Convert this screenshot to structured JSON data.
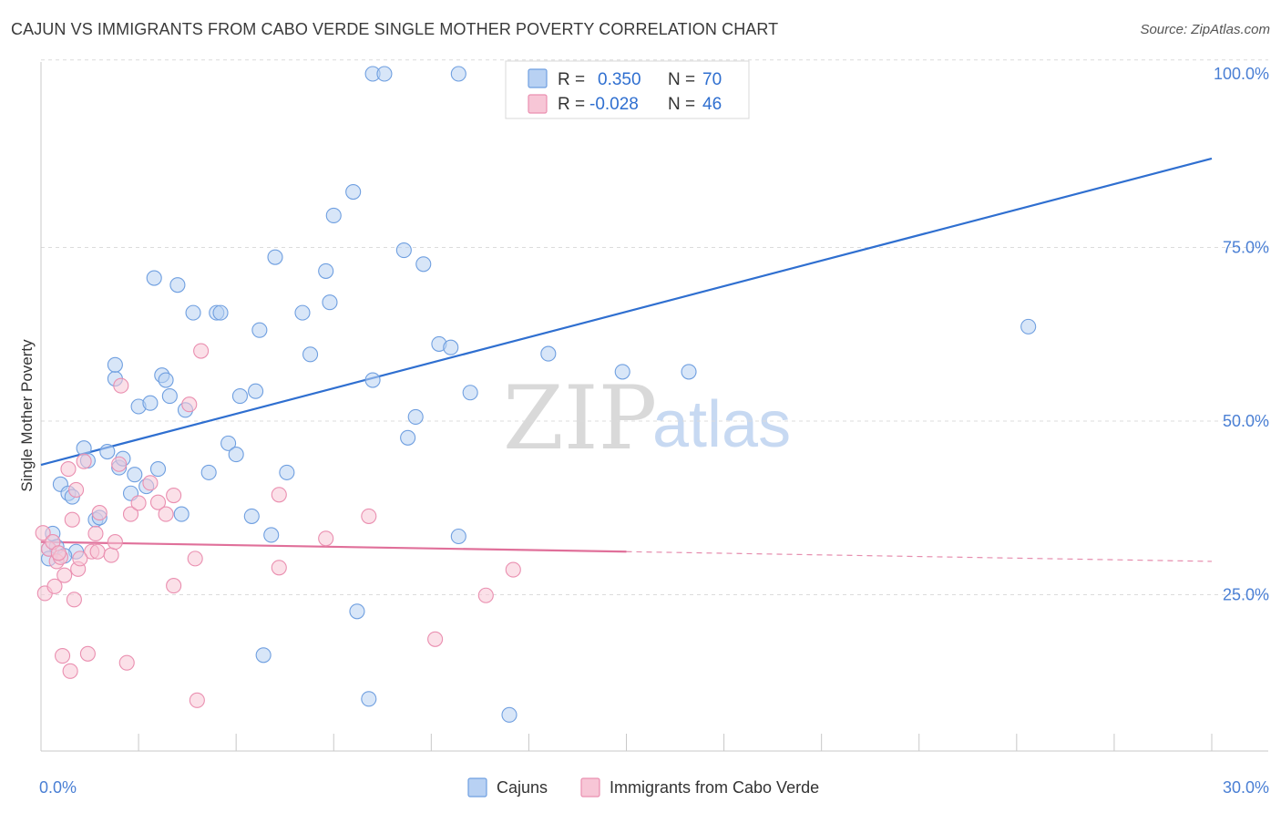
{
  "header": {
    "title": "CAJUN VS IMMIGRANTS FROM CABO VERDE SINGLE MOTHER POVERTY CORRELATION CHART",
    "source": "Source: ZipAtlas.com"
  },
  "watermark": {
    "zip": "ZIP",
    "atlas": "atlas"
  },
  "legend": {
    "r_label": "R =",
    "n_label": "N =",
    "rows": [
      {
        "r": "0.350",
        "n": "70",
        "fill": "#b8d1f3",
        "stroke": "#6f9fe0"
      },
      {
        "r": "-0.028",
        "n": "46",
        "fill": "#f7c6d6",
        "stroke": "#ea8fb0"
      }
    ]
  },
  "chart_data": {
    "type": "scatter",
    "title": "CAJUN VS IMMIGRANTS FROM CABO VERDE SINGLE MOTHER POVERTY CORRELATION CHART",
    "xlabel": "",
    "ylabel": "Single Mother Poverty",
    "xlim": [
      0,
      30
    ],
    "ylim": [
      0,
      105
    ],
    "x_tick_labels": [
      {
        "value": 0,
        "label": "0.0%"
      },
      {
        "value": 30,
        "label": "30.0%"
      }
    ],
    "y_tick_labels": [
      {
        "value": 25,
        "label": "25.0%"
      },
      {
        "value": 50,
        "label": "50.0%"
      },
      {
        "value": 75,
        "label": "75.0%"
      },
      {
        "value": 100,
        "label": "100.0%"
      }
    ],
    "y_gridlines": [
      25,
      50,
      75,
      102
    ],
    "series": [
      {
        "name": "Cajuns",
        "color": "#6f9fe0",
        "fill": "#b8d1f3",
        "line_color": "#2f6fd0",
        "trend": {
          "x0": 0,
          "y0": 43.7,
          "x1": 30,
          "y1": 87.8
        },
        "points": [
          [
            0.2,
            31.6
          ],
          [
            0.3,
            33.8
          ],
          [
            0.4,
            31.9
          ],
          [
            0.2,
            30.2
          ],
          [
            0.5,
            40.9
          ],
          [
            0.7,
            39.6
          ],
          [
            0.8,
            39.1
          ],
          [
            0.9,
            31.2
          ],
          [
            1.1,
            46.1
          ],
          [
            1.2,
            44.3
          ],
          [
            1.4,
            35.8
          ],
          [
            1.5,
            36.1
          ],
          [
            1.7,
            45.6
          ],
          [
            1.9,
            56.1
          ],
          [
            1.9,
            58.1
          ],
          [
            2.0,
            43.3
          ],
          [
            2.1,
            44.6
          ],
          [
            2.3,
            39.6
          ],
          [
            2.4,
            42.3
          ],
          [
            2.5,
            52.1
          ],
          [
            2.7,
            40.6
          ],
          [
            2.8,
            52.6
          ],
          [
            2.9,
            70.6
          ],
          [
            3.0,
            43.1
          ],
          [
            3.1,
            56.6
          ],
          [
            3.2,
            55.9
          ],
          [
            3.3,
            53.6
          ],
          [
            3.5,
            69.6
          ],
          [
            3.6,
            36.6
          ],
          [
            3.7,
            51.6
          ],
          [
            3.9,
            65.6
          ],
          [
            4.3,
            42.6
          ],
          [
            4.5,
            65.6
          ],
          [
            4.6,
            65.6
          ],
          [
            4.8,
            46.8
          ],
          [
            5.0,
            45.2
          ],
          [
            5.1,
            53.6
          ],
          [
            5.4,
            36.3
          ],
          [
            5.5,
            54.3
          ],
          [
            5.6,
            63.1
          ],
          [
            5.7,
            16.3
          ],
          [
            5.9,
            33.6
          ],
          [
            6.0,
            73.6
          ],
          [
            6.3,
            42.6
          ],
          [
            6.7,
            65.6
          ],
          [
            6.9,
            59.6
          ],
          [
            7.3,
            71.6
          ],
          [
            7.4,
            67.1
          ],
          [
            7.5,
            79.6
          ],
          [
            8.0,
            83.0
          ],
          [
            8.1,
            22.6
          ],
          [
            8.4,
            10.0
          ],
          [
            8.5,
            55.9
          ],
          [
            8.5,
            100.0
          ],
          [
            8.8,
            100.0
          ],
          [
            9.3,
            74.6
          ],
          [
            9.4,
            47.6
          ],
          [
            9.6,
            50.6
          ],
          [
            9.8,
            72.6
          ],
          [
            10.2,
            61.1
          ],
          [
            10.5,
            60.6
          ],
          [
            10.7,
            33.4
          ],
          [
            10.7,
            100.0
          ],
          [
            11.0,
            54.1
          ],
          [
            12.0,
            7.7
          ],
          [
            13.0,
            59.7
          ],
          [
            14.9,
            57.1
          ],
          [
            16.6,
            57.1
          ],
          [
            25.3,
            63.6
          ],
          [
            0.6,
            30.6
          ]
        ]
      },
      {
        "name": "Immigrants from Cabo Verde",
        "color": "#ea8fb0",
        "fill": "#f7c6d6",
        "line_color": "#e0709a",
        "trend": {
          "x0": 0,
          "y0": 32.6,
          "x1": 15,
          "y1": 31.2
        },
        "trend_dashed": {
          "x0": 15,
          "y0": 31.2,
          "x1": 30,
          "y1": 29.8
        },
        "points": [
          [
            0.05,
            33.9
          ],
          [
            0.1,
            25.2
          ],
          [
            0.2,
            31.6
          ],
          [
            0.3,
            32.6
          ],
          [
            0.35,
            26.2
          ],
          [
            0.4,
            29.8
          ],
          [
            0.5,
            30.4
          ],
          [
            0.55,
            16.2
          ],
          [
            0.6,
            27.8
          ],
          [
            0.7,
            43.1
          ],
          [
            0.75,
            14.0
          ],
          [
            0.8,
            35.8
          ],
          [
            0.85,
            24.3
          ],
          [
            0.9,
            40.1
          ],
          [
            0.95,
            28.7
          ],
          [
            1.1,
            44.2
          ],
          [
            1.2,
            16.5
          ],
          [
            1.3,
            31.2
          ],
          [
            1.4,
            33.8
          ],
          [
            1.45,
            31.2
          ],
          [
            1.5,
            36.8
          ],
          [
            1.8,
            30.7
          ],
          [
            1.9,
            32.6
          ],
          [
            2.0,
            43.8
          ],
          [
            2.05,
            55.1
          ],
          [
            2.2,
            15.2
          ],
          [
            2.3,
            36.6
          ],
          [
            2.5,
            38.2
          ],
          [
            2.8,
            41.1
          ],
          [
            3.0,
            38.3
          ],
          [
            3.2,
            36.6
          ],
          [
            3.4,
            39.3
          ],
          [
            3.4,
            26.3
          ],
          [
            3.8,
            52.4
          ],
          [
            3.95,
            30.2
          ],
          [
            4.0,
            9.8
          ],
          [
            4.1,
            60.1
          ],
          [
            6.1,
            28.9
          ],
          [
            6.1,
            39.4
          ],
          [
            7.3,
            33.1
          ],
          [
            8.4,
            36.3
          ],
          [
            10.1,
            18.6
          ],
          [
            11.4,
            24.9
          ],
          [
            12.1,
            28.6
          ],
          [
            1.0,
            30.2
          ],
          [
            0.45,
            31.0
          ]
        ]
      }
    ]
  },
  "bottom_legend": [
    {
      "label": "Cajuns",
      "fill": "#b8d1f3",
      "stroke": "#6f9fe0"
    },
    {
      "label": "Immigrants from Cabo Verde",
      "fill": "#f7c6d6",
      "stroke": "#ea8fb0"
    }
  ]
}
